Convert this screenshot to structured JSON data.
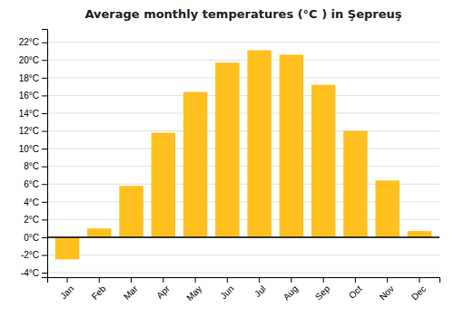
{
  "chart_data": {
    "type": "bar",
    "title": "Average monthly temperatures (°C ) in Şepreuş",
    "categories": [
      "Jan",
      "Feb",
      "Mar",
      "Apr",
      "May",
      "Jun",
      "Jul",
      "Aug",
      "Sep",
      "Oct",
      "Nov",
      "Dec"
    ],
    "values": [
      -2.5,
      1.0,
      5.8,
      11.8,
      16.4,
      19.7,
      21.1,
      20.6,
      17.2,
      12.0,
      6.4,
      0.7
    ],
    "color": "#FFC020",
    "ylim": [
      -4.5,
      23.5
    ],
    "yticks": [
      {
        "value": -4,
        "label": "-4°C"
      },
      {
        "value": -2,
        "label": "-2°C"
      },
      {
        "value": 0,
        "label": "0°C"
      },
      {
        "value": 2,
        "label": "2°C"
      },
      {
        "value": 4,
        "label": "4°C"
      },
      {
        "value": 6,
        "label": "6°C"
      },
      {
        "value": 8,
        "label": "8°C"
      },
      {
        "value": 10,
        "label": "10°C"
      },
      {
        "value": 12,
        "label": "12°C"
      },
      {
        "value": 14,
        "label": "14°C"
      },
      {
        "value": 16,
        "label": "16°C"
      },
      {
        "value": 18,
        "label": "18°C"
      },
      {
        "value": 20,
        "label": "20°C"
      },
      {
        "value": 22,
        "label": "22°C"
      }
    ],
    "grid": true
  }
}
